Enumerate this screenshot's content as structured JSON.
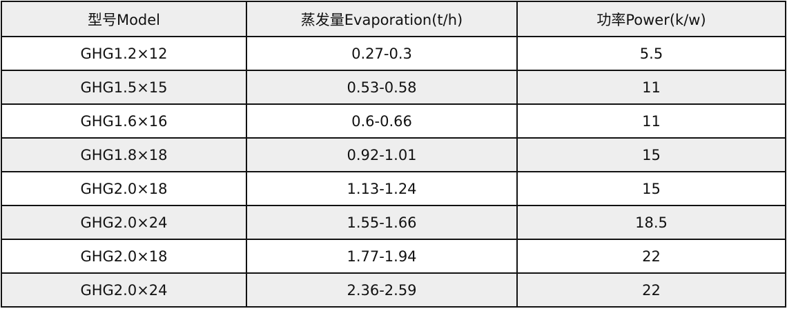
{
  "table": {
    "headers": [
      "型号Model",
      "蒸发量Evaporation(t/h)",
      "功率Power(k/w)"
    ],
    "rows": [
      [
        "GHG1.2×12",
        "0.27-0.3",
        "5.5"
      ],
      [
        "GHG1.5×15",
        "0.53-0.58",
        "11"
      ],
      [
        "GHG1.6×16",
        "0.6-0.66",
        "11"
      ],
      [
        "GHG1.8×18",
        "0.92-1.01",
        "15"
      ],
      [
        "GHG2.0×18",
        "1.13-1.24",
        "15"
      ],
      [
        "GHG2.0×24",
        "1.55-1.66",
        "18.5"
      ],
      [
        "GHG2.0×18",
        "1.77-1.94",
        "22"
      ],
      [
        "GHG2.0×24",
        "2.36-2.59",
        "22"
      ]
    ]
  },
  "colors": {
    "header_bg": "#eeeeee",
    "alt_row_bg": "#eeeeee",
    "border": "#111111"
  }
}
